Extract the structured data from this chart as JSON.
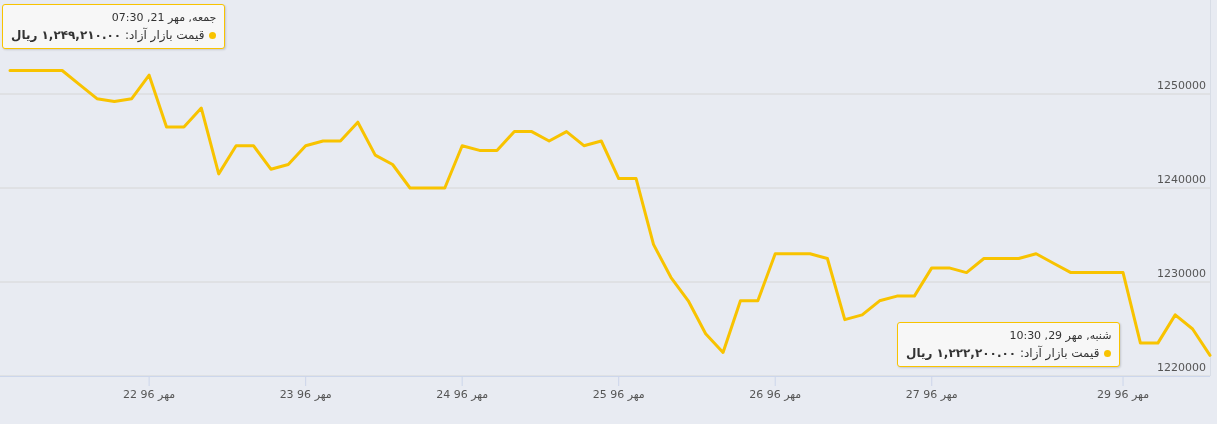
{
  "chart_data": {
    "type": "line",
    "categories": [
      null,
      null,
      null,
      null,
      null,
      null,
      null,
      null,
      "22 96 مهر",
      null,
      null,
      null,
      null,
      null,
      null,
      null,
      null,
      "23 96 مهر",
      null,
      null,
      null,
      null,
      null,
      null,
      null,
      null,
      "24 96 مهر",
      null,
      null,
      null,
      null,
      null,
      null,
      null,
      null,
      "25 96 مهر",
      null,
      null,
      null,
      null,
      null,
      null,
      null,
      null,
      "26 96 مهر",
      null,
      null,
      null,
      null,
      null,
      null,
      null,
      null,
      "27 96 مهر",
      null,
      null,
      null,
      null,
      null,
      null,
      null,
      null,
      null,
      null,
      "29 96 مهر",
      null,
      null,
      null,
      null,
      null
    ],
    "series": [
      {
        "color": "#f8c300",
        "values": [
          1252500,
          1252500,
          1252500,
          1252500,
          1251000,
          1249500,
          1249210,
          1249500,
          1252000,
          1246500,
          1246500,
          1248500,
          1241500,
          1244500,
          1244500,
          1242000,
          1242500,
          1244500,
          1245000,
          1245000,
          1247000,
          1243500,
          1242500,
          1240000,
          1240000,
          1240000,
          1244500,
          1244000,
          1244000,
          1246000,
          1246000,
          1245000,
          1246000,
          1244500,
          1245000,
          1241000,
          1241000,
          1234000,
          1230500,
          1228000,
          1224500,
          1222500,
          1228000,
          1228000,
          1233000,
          1233000,
          1233000,
          1232500,
          1226000,
          1226500,
          1228000,
          1228500,
          1228500,
          1231500,
          1231500,
          1231000,
          1232500,
          1232500,
          1232500,
          1233000,
          1232000,
          1231000,
          1231000,
          1231000,
          1231000,
          1223500,
          1223500,
          1226500,
          1225000,
          1222200
        ]
      }
    ],
    "ylim": [
      1220000,
      1260000
    ],
    "yticks": [
      1220000,
      1230000,
      1240000,
      1250000
    ],
    "grid": "y",
    "line_style": "solid",
    "annotations": [
      "جمعه, مهر 21, 07:30",
      "قیمت بازار آزاد: **۱,۲۴۹,۲۱۰.۰۰ ریال**",
      "شنبه, مهر 29, 10:30",
      "قیمت بازار آزاد: **۱,۲۲۲,۲۰۰.۰۰ ریال**"
    ]
  }
}
